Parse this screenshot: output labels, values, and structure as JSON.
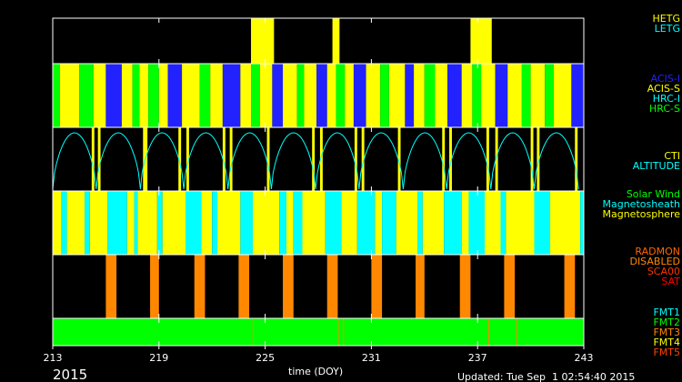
{
  "chart_data": {
    "type": "timeline",
    "year": "2015",
    "xlabel": "time (DOY)",
    "updated": "Updated: Tue Sep  1 02:54:40 2015",
    "xlim": [
      213,
      243
    ],
    "xticks": [
      213,
      219,
      225,
      231,
      237,
      243
    ],
    "panels": [
      {
        "name": "grating",
        "legend": [
          {
            "label": "HETG",
            "color": "#ffff00"
          },
          {
            "label": "LETG",
            "color": "#00ffff"
          }
        ],
        "segments": [
          {
            "start": 224.2,
            "end": 225.5,
            "state": "HETG"
          },
          {
            "start": 228.8,
            "end": 229.2,
            "state": "HETG"
          },
          {
            "start": 236.6,
            "end": 237.8,
            "state": "HETG"
          }
        ]
      },
      {
        "name": "instrument",
        "legend": [
          {
            "label": "ACIS-I",
            "color": "#2222ff"
          },
          {
            "label": "ACIS-S",
            "color": "#ffff00"
          },
          {
            "label": "HRC-I",
            "color": "#00ffff"
          },
          {
            "label": "HRC-S",
            "color": "#00ff00"
          }
        ],
        "segments": [
          {
            "start": 213.0,
            "end": 213.4,
            "state": "HRC-S"
          },
          {
            "start": 213.4,
            "end": 214.5,
            "state": "ACIS-S"
          },
          {
            "start": 214.5,
            "end": 215.3,
            "state": "HRC-S"
          },
          {
            "start": 215.3,
            "end": 216.0,
            "state": "ACIS-S"
          },
          {
            "start": 216.0,
            "end": 216.9,
            "state": "ACIS-I"
          },
          {
            "start": 216.9,
            "end": 217.5,
            "state": "ACIS-S"
          },
          {
            "start": 217.5,
            "end": 217.9,
            "state": "HRC-S"
          },
          {
            "start": 217.9,
            "end": 218.4,
            "state": "ACIS-S"
          },
          {
            "start": 218.4,
            "end": 219.0,
            "state": "HRC-S"
          },
          {
            "start": 219.0,
            "end": 219.5,
            "state": "ACIS-S"
          },
          {
            "start": 219.5,
            "end": 220.3,
            "state": "ACIS-I"
          },
          {
            "start": 220.3,
            "end": 221.3,
            "state": "ACIS-S"
          },
          {
            "start": 221.3,
            "end": 221.9,
            "state": "HRC-S"
          },
          {
            "start": 221.9,
            "end": 222.6,
            "state": "ACIS-S"
          },
          {
            "start": 222.6,
            "end": 223.6,
            "state": "ACIS-I"
          },
          {
            "start": 223.6,
            "end": 224.2,
            "state": "ACIS-S"
          },
          {
            "start": 224.2,
            "end": 224.7,
            "state": "HRC-S"
          },
          {
            "start": 224.7,
            "end": 225.4,
            "state": "ACIS-S"
          },
          {
            "start": 225.4,
            "end": 226.0,
            "state": "ACIS-I"
          },
          {
            "start": 226.0,
            "end": 226.8,
            "state": "ACIS-S"
          },
          {
            "start": 226.8,
            "end": 227.2,
            "state": "HRC-S"
          },
          {
            "start": 227.2,
            "end": 227.9,
            "state": "ACIS-S"
          },
          {
            "start": 227.9,
            "end": 228.5,
            "state": "ACIS-I"
          },
          {
            "start": 228.5,
            "end": 229.0,
            "state": "ACIS-S"
          },
          {
            "start": 229.0,
            "end": 229.5,
            "state": "HRC-S"
          },
          {
            "start": 229.5,
            "end": 230.0,
            "state": "ACIS-S"
          },
          {
            "start": 230.0,
            "end": 230.7,
            "state": "ACIS-I"
          },
          {
            "start": 230.7,
            "end": 231.5,
            "state": "ACIS-S"
          },
          {
            "start": 231.5,
            "end": 232.0,
            "state": "HRC-S"
          },
          {
            "start": 232.0,
            "end": 232.9,
            "state": "ACIS-S"
          },
          {
            "start": 232.9,
            "end": 233.4,
            "state": "ACIS-I"
          },
          {
            "start": 233.4,
            "end": 234.0,
            "state": "ACIS-S"
          },
          {
            "start": 234.0,
            "end": 234.6,
            "state": "HRC-S"
          },
          {
            "start": 234.6,
            "end": 235.3,
            "state": "ACIS-S"
          },
          {
            "start": 235.3,
            "end": 236.1,
            "state": "ACIS-I"
          },
          {
            "start": 236.1,
            "end": 236.7,
            "state": "ACIS-S"
          },
          {
            "start": 236.7,
            "end": 237.2,
            "state": "HRC-S"
          },
          {
            "start": 237.2,
            "end": 238.0,
            "state": "ACIS-S"
          },
          {
            "start": 238.0,
            "end": 238.7,
            "state": "ACIS-I"
          },
          {
            "start": 238.7,
            "end": 239.5,
            "state": "ACIS-S"
          },
          {
            "start": 239.5,
            "end": 240.0,
            "state": "HRC-S"
          },
          {
            "start": 240.0,
            "end": 240.8,
            "state": "ACIS-S"
          },
          {
            "start": 240.8,
            "end": 241.3,
            "state": "HRC-S"
          },
          {
            "start": 241.3,
            "end": 242.3,
            "state": "ACIS-S"
          },
          {
            "start": 242.3,
            "end": 243.0,
            "state": "ACIS-I"
          }
        ]
      },
      {
        "name": "cti-altitude",
        "legend": [
          {
            "label": "CTI",
            "color": "#ffff00"
          },
          {
            "label": "ALTITUDE",
            "color": "#00ffff"
          }
        ],
        "altitude_minima_doy": [
          213.0,
          215.45,
          217.95,
          220.4,
          222.9,
          225.35,
          227.85,
          230.3,
          232.8,
          235.25,
          237.75,
          240.2,
          242.7
        ],
        "segments": [
          {
            "start": 215.2,
            "end": 215.35,
            "state": "CTI"
          },
          {
            "start": 215.55,
            "end": 215.7,
            "state": "CTI"
          },
          {
            "start": 218.1,
            "end": 218.35,
            "state": "CTI"
          },
          {
            "start": 220.1,
            "end": 220.25,
            "state": "CTI"
          },
          {
            "start": 220.55,
            "end": 220.7,
            "state": "CTI"
          },
          {
            "start": 222.6,
            "end": 222.75,
            "state": "CTI"
          },
          {
            "start": 223.0,
            "end": 223.15,
            "state": "CTI"
          },
          {
            "start": 225.1,
            "end": 225.25,
            "state": "CTI"
          },
          {
            "start": 227.65,
            "end": 227.8,
            "state": "CTI"
          },
          {
            "start": 228.1,
            "end": 228.25,
            "state": "CTI"
          },
          {
            "start": 230.05,
            "end": 230.2,
            "state": "CTI"
          },
          {
            "start": 230.45,
            "end": 230.6,
            "state": "CTI"
          },
          {
            "start": 232.5,
            "end": 232.65,
            "state": "CTI"
          },
          {
            "start": 235.0,
            "end": 235.15,
            "state": "CTI"
          },
          {
            "start": 235.4,
            "end": 235.55,
            "state": "CTI"
          },
          {
            "start": 237.5,
            "end": 237.65,
            "state": "CTI"
          },
          {
            "start": 238.0,
            "end": 238.15,
            "state": "CTI"
          },
          {
            "start": 240.0,
            "end": 240.15,
            "state": "CTI"
          },
          {
            "start": 240.35,
            "end": 240.5,
            "state": "CTI"
          },
          {
            "start": 242.5,
            "end": 242.65,
            "state": "CTI"
          }
        ]
      },
      {
        "name": "environment",
        "legend": [
          {
            "label": "Solar Wind",
            "color": "#00ff00"
          },
          {
            "label": "Magnetosheath",
            "color": "#00ffff"
          },
          {
            "label": "Magnetosphere",
            "color": "#ffff00"
          }
        ],
        "segments": [
          {
            "start": 213.0,
            "end": 213.5,
            "state": "Magnetosphere"
          },
          {
            "start": 213.5,
            "end": 213.8,
            "state": "Magnetosheath"
          },
          {
            "start": 213.8,
            "end": 214.8,
            "state": "Magnetosphere"
          },
          {
            "start": 214.8,
            "end": 215.1,
            "state": "Magnetosheath"
          },
          {
            "start": 215.1,
            "end": 216.1,
            "state": "Magnetosphere"
          },
          {
            "start": 216.1,
            "end": 217.2,
            "state": "Magnetosheath"
          },
          {
            "start": 217.2,
            "end": 217.6,
            "state": "Magnetosphere"
          },
          {
            "start": 217.6,
            "end": 217.8,
            "state": "Magnetosheath"
          },
          {
            "start": 217.8,
            "end": 218.9,
            "state": "Magnetosphere"
          },
          {
            "start": 218.9,
            "end": 219.2,
            "state": "Magnetosheath"
          },
          {
            "start": 219.2,
            "end": 220.5,
            "state": "Magnetosphere"
          },
          {
            "start": 220.5,
            "end": 221.4,
            "state": "Magnetosheath"
          },
          {
            "start": 221.4,
            "end": 222.0,
            "state": "Magnetosphere"
          },
          {
            "start": 222.0,
            "end": 222.3,
            "state": "Magnetosheath"
          },
          {
            "start": 222.3,
            "end": 223.6,
            "state": "Magnetosphere"
          },
          {
            "start": 223.6,
            "end": 224.3,
            "state": "Magnetosheath"
          },
          {
            "start": 224.3,
            "end": 225.8,
            "state": "Magnetosphere"
          },
          {
            "start": 225.8,
            "end": 226.2,
            "state": "Magnetosheath"
          },
          {
            "start": 226.2,
            "end": 226.6,
            "state": "Magnetosphere"
          },
          {
            "start": 226.6,
            "end": 227.1,
            "state": "Magnetosheath"
          },
          {
            "start": 227.1,
            "end": 228.4,
            "state": "Magnetosphere"
          },
          {
            "start": 228.4,
            "end": 229.3,
            "state": "Magnetosheath"
          },
          {
            "start": 229.3,
            "end": 230.2,
            "state": "Magnetosphere"
          },
          {
            "start": 230.2,
            "end": 231.2,
            "state": "Magnetosheath"
          },
          {
            "start": 231.2,
            "end": 231.6,
            "state": "Magnetosphere"
          },
          {
            "start": 231.6,
            "end": 232.4,
            "state": "Magnetosheath"
          },
          {
            "start": 232.4,
            "end": 233.6,
            "state": "Magnetosphere"
          },
          {
            "start": 233.6,
            "end": 233.9,
            "state": "Magnetosheath"
          },
          {
            "start": 233.9,
            "end": 235.1,
            "state": "Magnetosphere"
          },
          {
            "start": 235.1,
            "end": 236.1,
            "state": "Magnetosheath"
          },
          {
            "start": 236.1,
            "end": 236.5,
            "state": "Magnetosphere"
          },
          {
            "start": 236.5,
            "end": 237.4,
            "state": "Magnetosheath"
          },
          {
            "start": 237.4,
            "end": 238.3,
            "state": "Magnetosphere"
          },
          {
            "start": 238.3,
            "end": 238.6,
            "state": "Magnetosheath"
          },
          {
            "start": 238.6,
            "end": 240.2,
            "state": "Magnetosphere"
          },
          {
            "start": 240.2,
            "end": 241.1,
            "state": "Magnetosheath"
          },
          {
            "start": 241.1,
            "end": 242.8,
            "state": "Magnetosphere"
          },
          {
            "start": 242.8,
            "end": 243.0,
            "state": "Magnetosheath"
          }
        ]
      },
      {
        "name": "radiation",
        "legend": [
          {
            "label": "RADMON",
            "color": "#ff6600"
          },
          {
            "label": "DISABLED",
            "color": "#ff8800"
          },
          {
            "label": "SCA00",
            "color": "#ff3300"
          },
          {
            "label": "SAT",
            "color": "#ff0000"
          }
        ],
        "segments": [
          {
            "start": 216.0,
            "end": 216.6,
            "state": "DISABLED"
          },
          {
            "start": 218.5,
            "end": 219.0,
            "state": "DISABLED"
          },
          {
            "start": 221.0,
            "end": 221.6,
            "state": "DISABLED"
          },
          {
            "start": 223.5,
            "end": 224.1,
            "state": "DISABLED"
          },
          {
            "start": 226.0,
            "end": 226.6,
            "state": "DISABLED"
          },
          {
            "start": 228.5,
            "end": 229.1,
            "state": "DISABLED"
          },
          {
            "start": 231.0,
            "end": 231.6,
            "state": "DISABLED"
          },
          {
            "start": 233.5,
            "end": 234.0,
            "state": "DISABLED"
          },
          {
            "start": 236.0,
            "end": 236.6,
            "state": "DISABLED"
          },
          {
            "start": 238.5,
            "end": 239.1,
            "state": "DISABLED"
          },
          {
            "start": 241.9,
            "end": 242.5,
            "state": "DISABLED"
          }
        ]
      },
      {
        "name": "format",
        "legend": [
          {
            "label": "FMT1",
            "color": "#00ffff"
          },
          {
            "label": "FMT2",
            "color": "#00ff00"
          },
          {
            "label": "FMT3",
            "color": "#ff8800"
          },
          {
            "label": "FMT4",
            "color": "#ffff00"
          },
          {
            "label": "FMT5",
            "color": "#ff4400"
          }
        ],
        "segments": [
          {
            "start": 213.0,
            "end": 243.0,
            "state": "FMT2"
          }
        ],
        "marks": [
          {
            "doy": 224.3,
            "state": "FMT3"
          },
          {
            "doy": 229.1,
            "state": "FMT3"
          },
          {
            "doy": 229.4,
            "state": "FMT3"
          },
          {
            "doy": 237.6,
            "state": "FMT3"
          },
          {
            "doy": 239.2,
            "state": "FMT3"
          }
        ]
      }
    ]
  }
}
